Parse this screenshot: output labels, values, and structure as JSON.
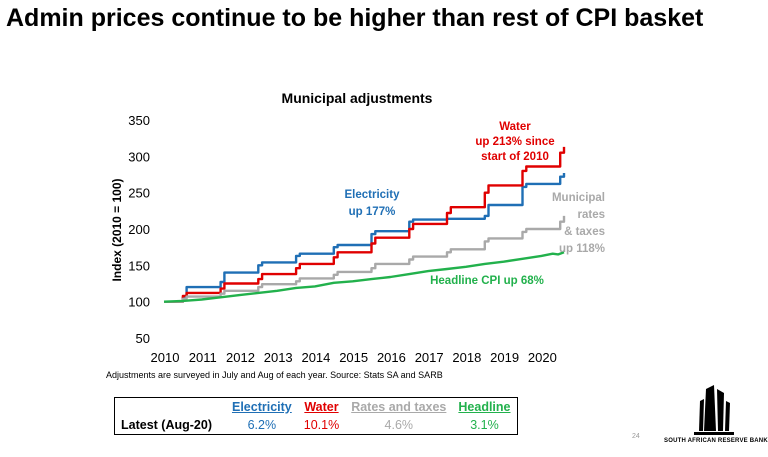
{
  "slide": {
    "title": "Admin prices continue to be higher than rest of CPI basket",
    "page_number": "24"
  },
  "chart_data": {
    "type": "line",
    "title": "Municipal adjustments",
    "ylabel": "Index (2010 = 100)",
    "xlabel": "",
    "ylim": [
      50,
      350
    ],
    "xlim": [
      2010,
      2020.6
    ],
    "yticks": [
      50,
      100,
      150,
      200,
      250,
      300,
      350
    ],
    "xticks": [
      2010,
      2011,
      2012,
      2013,
      2014,
      2015,
      2016,
      2017,
      2018,
      2019,
      2020
    ],
    "grid": false,
    "source": "Adjustments are surveyed in July and Aug of each year. Source: Stats SA and SARB",
    "series": [
      {
        "name": "Electricity",
        "color": "#1f6fb5",
        "annotation": [
          "Electricity",
          "up 177%"
        ],
        "points": [
          [
            2010.0,
            100
          ],
          [
            2010.5,
            100
          ],
          [
            2010.5,
            106
          ],
          [
            2010.6,
            106
          ],
          [
            2010.6,
            120
          ],
          [
            2011.5,
            120
          ],
          [
            2011.5,
            127
          ],
          [
            2011.6,
            127
          ],
          [
            2011.6,
            140
          ],
          [
            2012.5,
            140
          ],
          [
            2012.5,
            150
          ],
          [
            2012.6,
            150
          ],
          [
            2012.6,
            154
          ],
          [
            2013.5,
            154
          ],
          [
            2013.5,
            163
          ],
          [
            2013.6,
            163
          ],
          [
            2013.6,
            166
          ],
          [
            2014.5,
            166
          ],
          [
            2014.5,
            175
          ],
          [
            2014.6,
            175
          ],
          [
            2014.6,
            178
          ],
          [
            2015.5,
            178
          ],
          [
            2015.5,
            193
          ],
          [
            2015.6,
            193
          ],
          [
            2015.6,
            197
          ],
          [
            2016.5,
            197
          ],
          [
            2016.5,
            210
          ],
          [
            2016.6,
            210
          ],
          [
            2016.6,
            213
          ],
          [
            2017.5,
            213
          ],
          [
            2017.5,
            214
          ],
          [
            2018.5,
            214
          ],
          [
            2018.5,
            218
          ],
          [
            2018.6,
            218
          ],
          [
            2018.6,
            233
          ],
          [
            2019.5,
            233
          ],
          [
            2019.5,
            258
          ],
          [
            2019.6,
            258
          ],
          [
            2019.6,
            262
          ],
          [
            2020.5,
            262
          ],
          [
            2020.5,
            272
          ],
          [
            2020.6,
            272
          ],
          [
            2020.6,
            277
          ]
        ]
      },
      {
        "name": "Water",
        "color": "#e00000",
        "annotation": [
          "Water",
          "up 213% since",
          "start of 2010"
        ],
        "points": [
          [
            2010.0,
            100
          ],
          [
            2010.5,
            100
          ],
          [
            2010.5,
            108
          ],
          [
            2010.6,
            108
          ],
          [
            2010.6,
            112
          ],
          [
            2011.5,
            112
          ],
          [
            2011.5,
            118
          ],
          [
            2011.6,
            118
          ],
          [
            2011.6,
            125
          ],
          [
            2012.5,
            125
          ],
          [
            2012.5,
            131
          ],
          [
            2012.6,
            131
          ],
          [
            2012.6,
            138
          ],
          [
            2013.5,
            138
          ],
          [
            2013.5,
            146
          ],
          [
            2013.6,
            146
          ],
          [
            2013.6,
            152
          ],
          [
            2014.5,
            152
          ],
          [
            2014.5,
            161
          ],
          [
            2014.6,
            161
          ],
          [
            2014.6,
            168
          ],
          [
            2015.5,
            168
          ],
          [
            2015.5,
            180
          ],
          [
            2015.6,
            180
          ],
          [
            2015.6,
            188
          ],
          [
            2016.5,
            188
          ],
          [
            2016.5,
            200
          ],
          [
            2016.6,
            200
          ],
          [
            2016.6,
            207
          ],
          [
            2017.5,
            207
          ],
          [
            2017.5,
            222
          ],
          [
            2017.6,
            222
          ],
          [
            2017.6,
            230
          ],
          [
            2018.5,
            230
          ],
          [
            2018.5,
            250
          ],
          [
            2018.6,
            250
          ],
          [
            2018.6,
            260
          ],
          [
            2019.5,
            260
          ],
          [
            2019.5,
            280
          ],
          [
            2019.6,
            280
          ],
          [
            2019.6,
            286
          ],
          [
            2020.5,
            286
          ],
          [
            2020.5,
            305
          ],
          [
            2020.6,
            305
          ],
          [
            2020.6,
            313
          ]
        ]
      },
      {
        "name": "Municipal rates & taxes",
        "color": "#a9a9a9",
        "annotation": [
          "Municipal",
          "rates",
          "& taxes",
          "up 118%"
        ],
        "points": [
          [
            2010.0,
            100
          ],
          [
            2010.5,
            100
          ],
          [
            2010.5,
            104
          ],
          [
            2010.6,
            104
          ],
          [
            2010.6,
            107
          ],
          [
            2011.5,
            107
          ],
          [
            2011.5,
            111
          ],
          [
            2011.6,
            111
          ],
          [
            2011.6,
            115
          ],
          [
            2012.5,
            115
          ],
          [
            2012.5,
            120
          ],
          [
            2012.6,
            120
          ],
          [
            2012.6,
            124
          ],
          [
            2013.5,
            124
          ],
          [
            2013.5,
            128
          ],
          [
            2013.6,
            128
          ],
          [
            2013.6,
            132
          ],
          [
            2014.5,
            132
          ],
          [
            2014.5,
            137
          ],
          [
            2014.6,
            137
          ],
          [
            2014.6,
            141
          ],
          [
            2015.5,
            141
          ],
          [
            2015.5,
            146
          ],
          [
            2015.6,
            146
          ],
          [
            2015.6,
            152
          ],
          [
            2016.5,
            152
          ],
          [
            2016.5,
            158
          ],
          [
            2016.6,
            158
          ],
          [
            2016.6,
            162
          ],
          [
            2017.5,
            162
          ],
          [
            2017.5,
            168
          ],
          [
            2017.6,
            168
          ],
          [
            2017.6,
            172
          ],
          [
            2018.5,
            172
          ],
          [
            2018.5,
            183
          ],
          [
            2018.6,
            183
          ],
          [
            2018.6,
            187
          ],
          [
            2019.5,
            187
          ],
          [
            2019.5,
            196
          ],
          [
            2019.6,
            196
          ],
          [
            2019.6,
            200
          ],
          [
            2020.5,
            200
          ],
          [
            2020.5,
            210
          ],
          [
            2020.6,
            210
          ],
          [
            2020.6,
            218
          ]
        ]
      },
      {
        "name": "Headline CPI",
        "color": "#22b14c",
        "annotation": [
          "Headline CPI up 68%"
        ],
        "points": [
          [
            2010.0,
            100
          ],
          [
            2010.5,
            101
          ],
          [
            2011.0,
            103
          ],
          [
            2011.5,
            106
          ],
          [
            2012.0,
            109
          ],
          [
            2012.5,
            112
          ],
          [
            2013.0,
            115
          ],
          [
            2013.5,
            119
          ],
          [
            2014.0,
            121
          ],
          [
            2014.5,
            126
          ],
          [
            2015.0,
            128
          ],
          [
            2015.5,
            131
          ],
          [
            2016.0,
            134
          ],
          [
            2016.5,
            138
          ],
          [
            2017.0,
            142
          ],
          [
            2017.5,
            145
          ],
          [
            2018.0,
            148
          ],
          [
            2018.5,
            152
          ],
          [
            2019.0,
            155
          ],
          [
            2019.5,
            159
          ],
          [
            2020.0,
            163
          ],
          [
            2020.3,
            166
          ],
          [
            2020.45,
            165
          ],
          [
            2020.6,
            168
          ]
        ]
      }
    ]
  },
  "table": {
    "headers": [
      "",
      "Electricity",
      "Water",
      "Rates and taxes",
      "Headline"
    ],
    "header_colors": [
      "#000000",
      "#1f6fb5",
      "#e00000",
      "#a9a9a9",
      "#22b14c"
    ],
    "row_label": "Latest (Aug-20)",
    "values": [
      "6.2%",
      "10.1%",
      "4.6%",
      "3.1%"
    ]
  },
  "logo": {
    "text": "SOUTH AFRICAN RESERVE BANK"
  }
}
